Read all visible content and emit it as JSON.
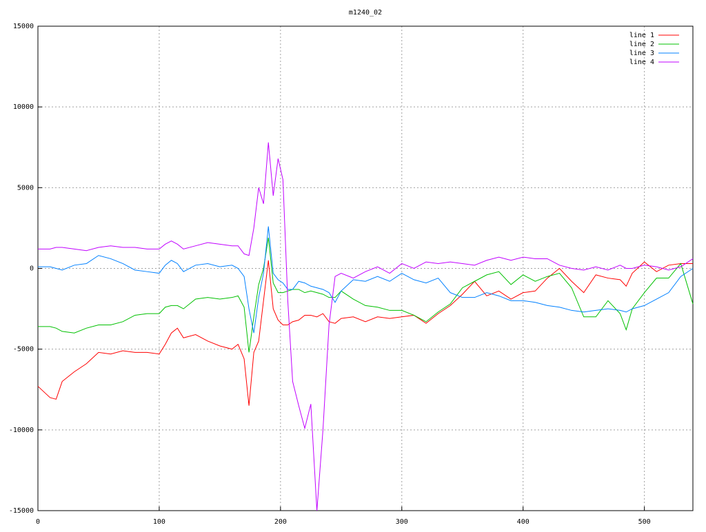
{
  "chart_data": {
    "type": "line",
    "title": "m1240_02",
    "x": [
      0,
      10,
      15,
      20,
      30,
      40,
      50,
      60,
      70,
      80,
      90,
      100,
      105,
      110,
      115,
      120,
      130,
      140,
      150,
      160,
      165,
      170,
      174,
      178,
      182,
      186,
      190,
      194,
      198,
      202,
      206,
      210,
      215,
      220,
      225,
      230,
      235,
      240,
      245,
      250,
      260,
      270,
      280,
      290,
      300,
      310,
      320,
      330,
      340,
      350,
      360,
      370,
      380,
      390,
      400,
      410,
      420,
      430,
      440,
      450,
      460,
      470,
      480,
      485,
      490,
      500,
      510,
      520,
      530,
      540
    ],
    "series": [
      {
        "name": "line 1",
        "color": "#ff0000",
        "values": [
          -7300,
          -8000,
          -8100,
          -7000,
          -6400,
          -5900,
          -5200,
          -5300,
          -5100,
          -5200,
          -5200,
          -5300,
          -4700,
          -4000,
          -3700,
          -4300,
          -4100,
          -4500,
          -4800,
          -5000,
          -4700,
          -5600,
          -8500,
          -5200,
          -4500,
          -2000,
          500,
          -2500,
          -3200,
          -3500,
          -3500,
          -3300,
          -3200,
          -2900,
          -2900,
          -3000,
          -2800,
          -3300,
          -3400,
          -3100,
          -3000,
          -3300,
          -3000,
          -3100,
          -3000,
          -2900,
          -3400,
          -2800,
          -2300,
          -1600,
          -800,
          -1700,
          -1400,
          -1900,
          -1500,
          -1400,
          -600,
          0,
          -800,
          -1500,
          -400,
          -600,
          -700,
          -1100,
          -300,
          400,
          -200,
          200,
          300,
          300
        ]
      },
      {
        "name": "line 2",
        "color": "#00c000",
        "values": [
          -3600,
          -3600,
          -3700,
          -3900,
          -4000,
          -3700,
          -3500,
          -3500,
          -3300,
          -2900,
          -2800,
          -2800,
          -2400,
          -2300,
          -2300,
          -2500,
          -1900,
          -1800,
          -1900,
          -1800,
          -1700,
          -2400,
          -5200,
          -3000,
          -1000,
          0,
          1900,
          -900,
          -1500,
          -1500,
          -1400,
          -1300,
          -1300,
          -1500,
          -1400,
          -1500,
          -1600,
          -1800,
          -1800,
          -1400,
          -1900,
          -2300,
          -2400,
          -2600,
          -2600,
          -2900,
          -3300,
          -2700,
          -2200,
          -1200,
          -800,
          -400,
          -200,
          -1000,
          -400,
          -800,
          -500,
          -300,
          -1200,
          -3000,
          -3000,
          -2000,
          -2800,
          -3800,
          -2500,
          -1500,
          -600,
          -600,
          300,
          -2200
        ]
      },
      {
        "name": "line 3",
        "color": "#0080ff",
        "values": [
          100,
          100,
          0,
          -100,
          200,
          300,
          800,
          600,
          300,
          -100,
          -200,
          -300,
          200,
          500,
          300,
          -200,
          200,
          300,
          100,
          200,
          0,
          -500,
          -2500,
          -4000,
          -1800,
          -300,
          2600,
          -300,
          -700,
          -900,
          -1300,
          -1300,
          -800,
          -900,
          -1100,
          -1200,
          -1300,
          -1500,
          -2100,
          -1400,
          -700,
          -800,
          -500,
          -800,
          -300,
          -700,
          -900,
          -600,
          -1500,
          -1800,
          -1800,
          -1500,
          -1700,
          -2000,
          -2000,
          -2100,
          -2300,
          -2400,
          -2600,
          -2700,
          -2600,
          -2500,
          -2600,
          -2700,
          -2500,
          -2300,
          -1900,
          -1500,
          -500,
          0
        ]
      },
      {
        "name": "line 4",
        "color": "#c000ff",
        "values": [
          1200,
          1200,
          1300,
          1300,
          1200,
          1100,
          1300,
          1400,
          1300,
          1300,
          1200,
          1200,
          1500,
          1700,
          1500,
          1200,
          1400,
          1600,
          1500,
          1400,
          1400,
          900,
          800,
          2500,
          5000,
          4000,
          7800,
          4500,
          6800,
          5500,
          -2000,
          -7000,
          -8500,
          -9900,
          -8400,
          -15000,
          -10000,
          -3500,
          -500,
          -300,
          -600,
          -200,
          100,
          -300,
          300,
          0,
          400,
          300,
          400,
          300,
          200,
          500,
          700,
          500,
          700,
          600,
          600,
          200,
          0,
          -100,
          100,
          -100,
          200,
          0,
          0,
          200,
          100,
          -100,
          100,
          600
        ]
      }
    ],
    "xlim": [
      0,
      540
    ],
    "xticks": [
      0,
      100,
      200,
      300,
      400,
      500
    ],
    "ylim": [
      -15000,
      15000
    ],
    "yticks": [
      -15000,
      -10000,
      -5000,
      0,
      5000,
      10000,
      15000
    ],
    "grid": true,
    "legend": "top-right"
  }
}
